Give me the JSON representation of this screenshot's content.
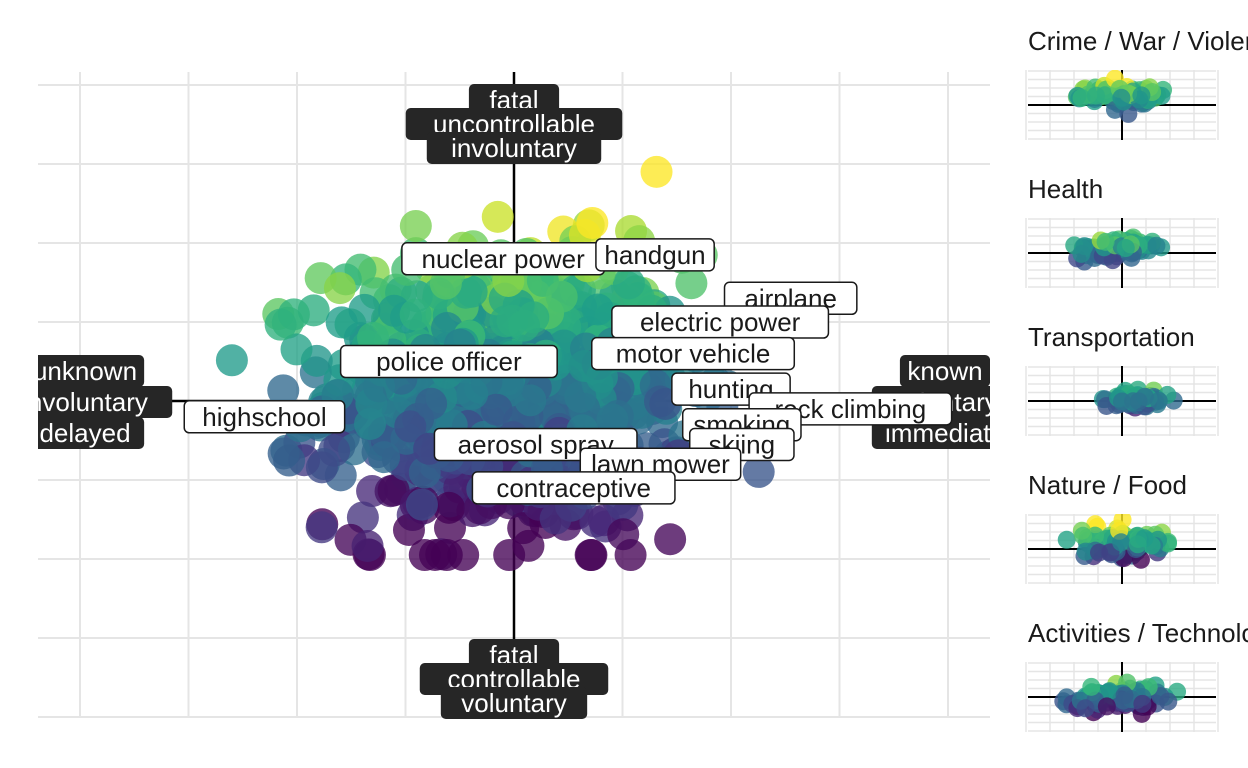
{
  "colors": {
    "background": "#ffffff",
    "grid": "#e5e5e5",
    "axis": "#000000",
    "dark_label_bg": "#262626",
    "dark_label_text": "#ffffff",
    "light_label_bg": "#ffffff",
    "light_label_border": "#1a1a1a",
    "palette": "viridis"
  },
  "chart_data": [
    {
      "panel": "main",
      "type": "scatter",
      "title": "",
      "xlim": [
        -4,
        4
      ],
      "ylim": [
        -4,
        4
      ],
      "grid": true,
      "x_ticks": [
        -4,
        -3,
        -2,
        -1,
        0,
        1,
        2,
        3,
        4
      ],
      "y_ticks": [
        -4,
        -3,
        -2,
        -1,
        0,
        1,
        2,
        3,
        4
      ],
      "tick_labels_shown": false,
      "color_scale": "viridis (purple = low y, yellow = high y)",
      "point_cloud": {
        "x_center": -0.05,
        "x_spread": 1.1,
        "y_center": 0.1,
        "y_spread": 1.1,
        "approx_points": 900
      },
      "axis_pole_labels": {
        "top": [
          "fatal",
          "uncontrollable",
          "involuntary"
        ],
        "bottom": [
          "fatal",
          "controllable",
          "voluntary"
        ],
        "left": [
          "unknown",
          "involuntary",
          "delayed"
        ],
        "right": [
          "known",
          "voluntary",
          "immediate"
        ]
      },
      "item_labels": [
        {
          "text": "nuclear power",
          "x": -0.1,
          "y": 1.8
        },
        {
          "text": "handgun",
          "x": 1.3,
          "y": 1.85
        },
        {
          "text": "airplane",
          "x": 2.55,
          "y": 1.3
        },
        {
          "text": "electric power",
          "x": 1.9,
          "y": 1.0
        },
        {
          "text": "police officer",
          "x": -0.6,
          "y": 0.5
        },
        {
          "text": "motor vehicle",
          "x": 1.65,
          "y": 0.6
        },
        {
          "text": "hunting",
          "x": 2.0,
          "y": 0.15
        },
        {
          "text": "rock climbing",
          "x": 3.1,
          "y": -0.1
        },
        {
          "text": "smoking",
          "x": 2.1,
          "y": -0.3
        },
        {
          "text": "skiing",
          "x": 2.1,
          "y": -0.55
        },
        {
          "text": "highschool",
          "x": -2.3,
          "y": -0.2
        },
        {
          "text": "aerosol spray",
          "x": 0.2,
          "y": -0.55
        },
        {
          "text": "lawn mower",
          "x": 1.35,
          "y": -0.8
        },
        {
          "text": "contraceptive",
          "x": 0.55,
          "y": -1.1
        }
      ]
    },
    {
      "panel": "Crime / War / Violence",
      "type": "scatter",
      "title": "Crime / War / Violence",
      "xlim": [
        -4,
        4
      ],
      "ylim": [
        -4,
        4
      ],
      "grid": true,
      "point_cloud": {
        "x_center": 0.0,
        "x_spread": 1.2,
        "y_center": 1.2,
        "y_spread": 0.8,
        "approx_points": 80
      }
    },
    {
      "panel": "Health",
      "type": "scatter",
      "title": "Health",
      "xlim": [
        -4,
        4
      ],
      "ylim": [
        -4,
        4
      ],
      "grid": true,
      "point_cloud": {
        "x_center": -0.2,
        "x_spread": 1.0,
        "y_center": 0.3,
        "y_spread": 0.8,
        "approx_points": 80
      }
    },
    {
      "panel": "Transportation",
      "type": "scatter",
      "title": "Transportation",
      "xlim": [
        -4,
        4
      ],
      "ylim": [
        -4,
        4
      ],
      "grid": true,
      "point_cloud": {
        "x_center": 0.6,
        "x_spread": 0.9,
        "y_center": 0.1,
        "y_spread": 0.6,
        "approx_points": 60
      }
    },
    {
      "panel": "Nature / Food",
      "type": "scatter",
      "title": "Nature / Food",
      "xlim": [
        -4,
        4
      ],
      "ylim": [
        -4,
        4
      ],
      "grid": true,
      "point_cloud": {
        "x_center": 0.0,
        "x_spread": 1.2,
        "y_center": 0.6,
        "y_spread": 1.0,
        "approx_points": 120
      }
    },
    {
      "panel": "Activities / Technology",
      "type": "scatter",
      "title": "Activities / Technology",
      "xlim": [
        -4,
        4
      ],
      "ylim": [
        -4,
        4
      ],
      "grid": true,
      "point_cloud": {
        "x_center": -0.2,
        "x_spread": 1.2,
        "y_center": -0.2,
        "y_spread": 0.8,
        "approx_points": 120
      }
    }
  ]
}
